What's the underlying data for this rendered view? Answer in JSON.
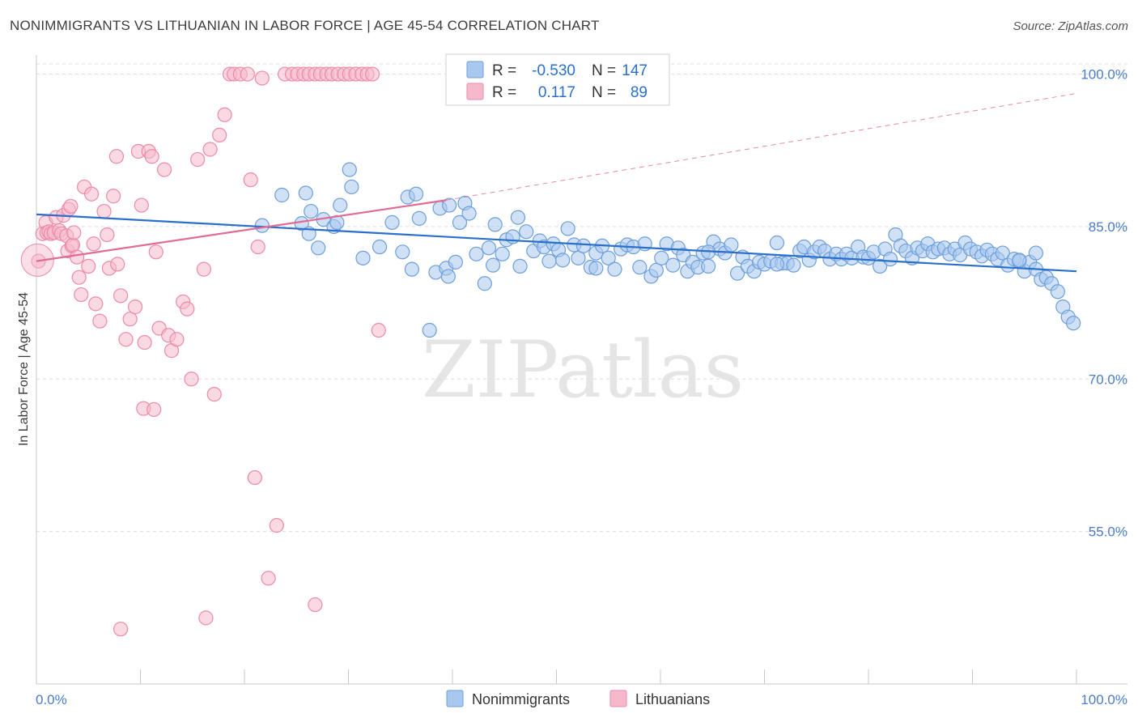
{
  "chart_data": {
    "type": "scatter",
    "title": "NONIMMIGRANTS VS LITHUANIAN IN LABOR FORCE | AGE 45-54 CORRELATION CHART",
    "source": "Source: ZipAtlas.com",
    "xlabel": "",
    "ylabel": "In Labor Force | Age 45-54",
    "xlim": [
      0,
      100
    ],
    "ylim": [
      40,
      101
    ],
    "x_tick_labels": [
      "0.0%",
      "100.0%"
    ],
    "y_ticks": [
      55,
      70,
      85,
      100
    ],
    "y_tick_labels": [
      "55.0%",
      "70.0%",
      "85.0%",
      "100.0%"
    ],
    "watermark": "ZIPatlas",
    "legend": {
      "position": "top-center",
      "rows": [
        {
          "r_label": "R =",
          "r_value": "-0.530",
          "n_label": "N =",
          "n_value": "147"
        },
        {
          "r_label": "R =",
          "r_value": "0.117",
          "n_label": "N =",
          "n_value": "89"
        }
      ]
    },
    "colors": {
      "blue_fill": "#a9c8ef",
      "blue_stroke": "#6d9fdb",
      "blue_line": "#2a6fcc",
      "pink_fill": "#f6b9cc",
      "pink_stroke": "#ec8aa8",
      "pink_line": "#e06b95",
      "axis_text": "#4a7cc9",
      "grid": "#dcdcdc"
    },
    "series": [
      {
        "name": "Nonimmigrants",
        "trend": {
          "x": [
            0,
            100
          ],
          "y": [
            86.2,
            80.6
          ]
        },
        "points": [
          [
            21.7,
            85.1
          ],
          [
            23.6,
            88.1
          ],
          [
            25.5,
            85.3
          ],
          [
            25.9,
            88.3
          ],
          [
            26.2,
            84.3
          ],
          [
            26.4,
            86.5
          ],
          [
            27.1,
            82.9
          ],
          [
            27.6,
            85.7
          ],
          [
            28.6,
            85
          ],
          [
            28.9,
            85.4
          ],
          [
            29.2,
            87.1
          ],
          [
            30.1,
            90.6
          ],
          [
            30.3,
            88.9
          ],
          [
            31.4,
            81.9
          ],
          [
            33,
            83
          ],
          [
            34.2,
            85.4
          ],
          [
            35.2,
            82.5
          ],
          [
            35.7,
            87.9
          ],
          [
            36.1,
            80.8
          ],
          [
            36.5,
            88.2
          ],
          [
            36.8,
            85.8
          ],
          [
            38.4,
            80.5
          ],
          [
            38.8,
            86.8
          ],
          [
            39.4,
            80.9
          ],
          [
            39.7,
            87.1
          ],
          [
            39.6,
            80.1
          ],
          [
            40.3,
            81.5
          ],
          [
            40.7,
            85.4
          ],
          [
            41.2,
            87.3
          ],
          [
            41.6,
            86.3
          ],
          [
            42.3,
            82.3
          ],
          [
            43.1,
            79.4
          ],
          [
            43.5,
            82.9
          ],
          [
            43.9,
            81.2
          ],
          [
            44.1,
            85.2
          ],
          [
            44.8,
            82.3
          ],
          [
            45.2,
            83.7
          ],
          [
            45.8,
            84
          ],
          [
            46.3,
            85.9
          ],
          [
            46.5,
            81.1
          ],
          [
            47.1,
            84.5
          ],
          [
            47.8,
            82.6
          ],
          [
            48.4,
            83.6
          ],
          [
            48.8,
            83
          ],
          [
            49.3,
            81.6
          ],
          [
            49.7,
            83.3
          ],
          [
            50.2,
            82.7
          ],
          [
            50.6,
            81.7
          ],
          [
            51.1,
            84.8
          ],
          [
            51.7,
            83.2
          ],
          [
            52.1,
            81.9
          ],
          [
            52.6,
            83.1
          ],
          [
            53.3,
            81
          ],
          [
            53.8,
            82.4
          ],
          [
            54.4,
            83.1
          ],
          [
            55,
            81.9
          ],
          [
            55.6,
            80.8
          ],
          [
            56.2,
            82.8
          ],
          [
            56.8,
            83.2
          ],
          [
            57.4,
            83
          ],
          [
            58,
            81
          ],
          [
            58.5,
            83.3
          ],
          [
            59.1,
            80.1
          ],
          [
            59.6,
            80.7
          ],
          [
            60.1,
            81.9
          ],
          [
            60.6,
            83.3
          ],
          [
            61.2,
            81.2
          ],
          [
            61.7,
            82.9
          ],
          [
            62.2,
            82.2
          ],
          [
            62.6,
            80.6
          ],
          [
            63.1,
            81.5
          ],
          [
            63.6,
            81
          ],
          [
            64.1,
            82.4
          ],
          [
            64.6,
            81.1
          ],
          [
            65.1,
            83.5
          ],
          [
            65.7,
            82.8
          ],
          [
            66.2,
            82.4
          ],
          [
            66.8,
            83.2
          ],
          [
            67.4,
            80.4
          ],
          [
            67.9,
            82
          ],
          [
            68.4,
            81.1
          ],
          [
            69,
            80.6
          ],
          [
            69.5,
            81.5
          ],
          [
            70,
            81.3
          ],
          [
            70.6,
            81.6
          ],
          [
            71.2,
            83.4
          ],
          [
            71.7,
            81.4
          ],
          [
            72.2,
            81.4
          ],
          [
            72.8,
            81.2
          ],
          [
            73.4,
            82.6
          ],
          [
            73.8,
            83
          ],
          [
            74.3,
            81.7
          ],
          [
            74.8,
            82.5
          ],
          [
            75.3,
            83
          ],
          [
            75.8,
            82.6
          ],
          [
            76.3,
            81.8
          ],
          [
            76.9,
            82.3
          ],
          [
            77.4,
            81.8
          ],
          [
            77.9,
            82.3
          ],
          [
            78.4,
            81.9
          ],
          [
            79,
            83
          ],
          [
            79.5,
            82
          ],
          [
            80,
            81.9
          ],
          [
            80.5,
            82.5
          ],
          [
            81.1,
            81.1
          ],
          [
            81.6,
            82.8
          ],
          [
            82.1,
            81.8
          ],
          [
            82.6,
            84.2
          ],
          [
            83.1,
            83.1
          ],
          [
            83.6,
            82.6
          ],
          [
            84.2,
            81.9
          ],
          [
            84.7,
            82.9
          ],
          [
            85.2,
            82.6
          ],
          [
            85.7,
            83.3
          ],
          [
            86.2,
            82.5
          ],
          [
            86.7,
            82.8
          ],
          [
            87.3,
            82.9
          ],
          [
            87.8,
            82.3
          ],
          [
            88.3,
            82.8
          ],
          [
            88.8,
            82.2
          ],
          [
            89.3,
            83.4
          ],
          [
            89.8,
            82.8
          ],
          [
            90.4,
            82.5
          ],
          [
            90.9,
            82.1
          ],
          [
            91.4,
            82.7
          ],
          [
            91.9,
            82.3
          ],
          [
            92.4,
            81.8
          ],
          [
            92.9,
            82.4
          ],
          [
            93.4,
            81.2
          ],
          [
            94,
            81.8
          ],
          [
            94.5,
            81.6
          ],
          [
            95,
            80.6
          ],
          [
            95.5,
            81.5
          ],
          [
            96.1,
            80.8
          ],
          [
            96.6,
            79.8
          ],
          [
            97.1,
            80
          ],
          [
            97.6,
            79.4
          ],
          [
            98.2,
            78.6
          ],
          [
            98.7,
            77.1
          ],
          [
            99.2,
            76.1
          ],
          [
            99.7,
            75.5
          ],
          [
            96.1,
            82.4
          ],
          [
            94.5,
            81.7
          ],
          [
            64.6,
            82.5
          ],
          [
            71.2,
            81.3
          ],
          [
            53.8,
            80.9
          ],
          [
            37.8,
            74.8
          ]
        ]
      },
      {
        "name": "Lithuanians",
        "trend": {
          "x": [
            0,
            39.4
          ],
          "y": [
            81.6,
            87.6
          ]
        },
        "trend_ext": {
          "x": [
            39.4,
            100
          ],
          "y": [
            87.6,
            98.1
          ]
        },
        "points": [
          [
            0.2,
            81.6
          ],
          [
            0.6,
            84.3
          ],
          [
            0.9,
            85.4
          ],
          [
            1,
            84.4
          ],
          [
            1.2,
            84.5
          ],
          [
            1.4,
            84.3
          ],
          [
            1.7,
            84.4
          ],
          [
            1.9,
            85.9
          ],
          [
            2.2,
            84.6
          ],
          [
            2.4,
            84.3
          ],
          [
            2.6,
            86.1
          ],
          [
            2.9,
            84.1
          ],
          [
            3,
            82.6
          ],
          [
            3.1,
            86.7
          ],
          [
            3.3,
            87
          ],
          [
            3.4,
            83.1
          ],
          [
            3.5,
            83.2
          ],
          [
            3.6,
            84.4
          ],
          [
            3.9,
            82
          ],
          [
            4.1,
            80
          ],
          [
            4.3,
            78.3
          ],
          [
            4.6,
            88.9
          ],
          [
            5,
            81.1
          ],
          [
            5.3,
            88.2
          ],
          [
            5.7,
            77.4
          ],
          [
            6.1,
            75.7
          ],
          [
            6.5,
            86.5
          ],
          [
            6.8,
            84.2
          ],
          [
            7,
            80.9
          ],
          [
            7.4,
            88
          ],
          [
            7.7,
            91.9
          ],
          [
            7.8,
            81.3
          ],
          [
            8.1,
            78.2
          ],
          [
            8.6,
            73.9
          ],
          [
            9,
            75.9
          ],
          [
            9.5,
            77.1
          ],
          [
            9.8,
            92.4
          ],
          [
            10.1,
            87.1
          ],
          [
            10.4,
            73.6
          ],
          [
            10.8,
            92.4
          ],
          [
            11.1,
            91.9
          ],
          [
            11.5,
            82.5
          ],
          [
            11.8,
            75
          ],
          [
            12.3,
            90.6
          ],
          [
            12.7,
            74.3
          ],
          [
            13,
            72.8
          ],
          [
            13.5,
            73.9
          ],
          [
            14.1,
            77.6
          ],
          [
            14.5,
            76.9
          ],
          [
            14.9,
            70
          ],
          [
            15.5,
            91.6
          ],
          [
            16.1,
            80.8
          ],
          [
            16.7,
            92.6
          ],
          [
            17.1,
            68.5
          ],
          [
            17.6,
            94
          ],
          [
            18.1,
            96
          ],
          [
            18.6,
            100
          ],
          [
            19,
            100
          ],
          [
            19.6,
            100
          ],
          [
            20.3,
            100
          ],
          [
            20.6,
            89.6
          ],
          [
            21,
            60.3
          ],
          [
            21.3,
            83
          ],
          [
            21.7,
            99.6
          ],
          [
            22.3,
            50.4
          ],
          [
            23.1,
            55.6
          ],
          [
            23.9,
            100
          ],
          [
            24.6,
            100
          ],
          [
            25.1,
            100
          ],
          [
            25.7,
            100
          ],
          [
            26.2,
            100
          ],
          [
            26.8,
            100
          ],
          [
            27.3,
            100
          ],
          [
            27.9,
            100
          ],
          [
            28.4,
            100
          ],
          [
            29,
            100
          ],
          [
            29.6,
            100
          ],
          [
            30.1,
            100
          ],
          [
            30.7,
            100
          ],
          [
            31.3,
            100
          ],
          [
            31.8,
            100
          ],
          [
            32.3,
            100
          ],
          [
            32.9,
            74.8
          ],
          [
            10.3,
            67.1
          ],
          [
            11.3,
            67
          ],
          [
            8.1,
            45.4
          ],
          [
            16.3,
            46.5
          ],
          [
            26.8,
            47.8
          ],
          [
            5.5,
            83.3
          ]
        ]
      }
    ]
  }
}
